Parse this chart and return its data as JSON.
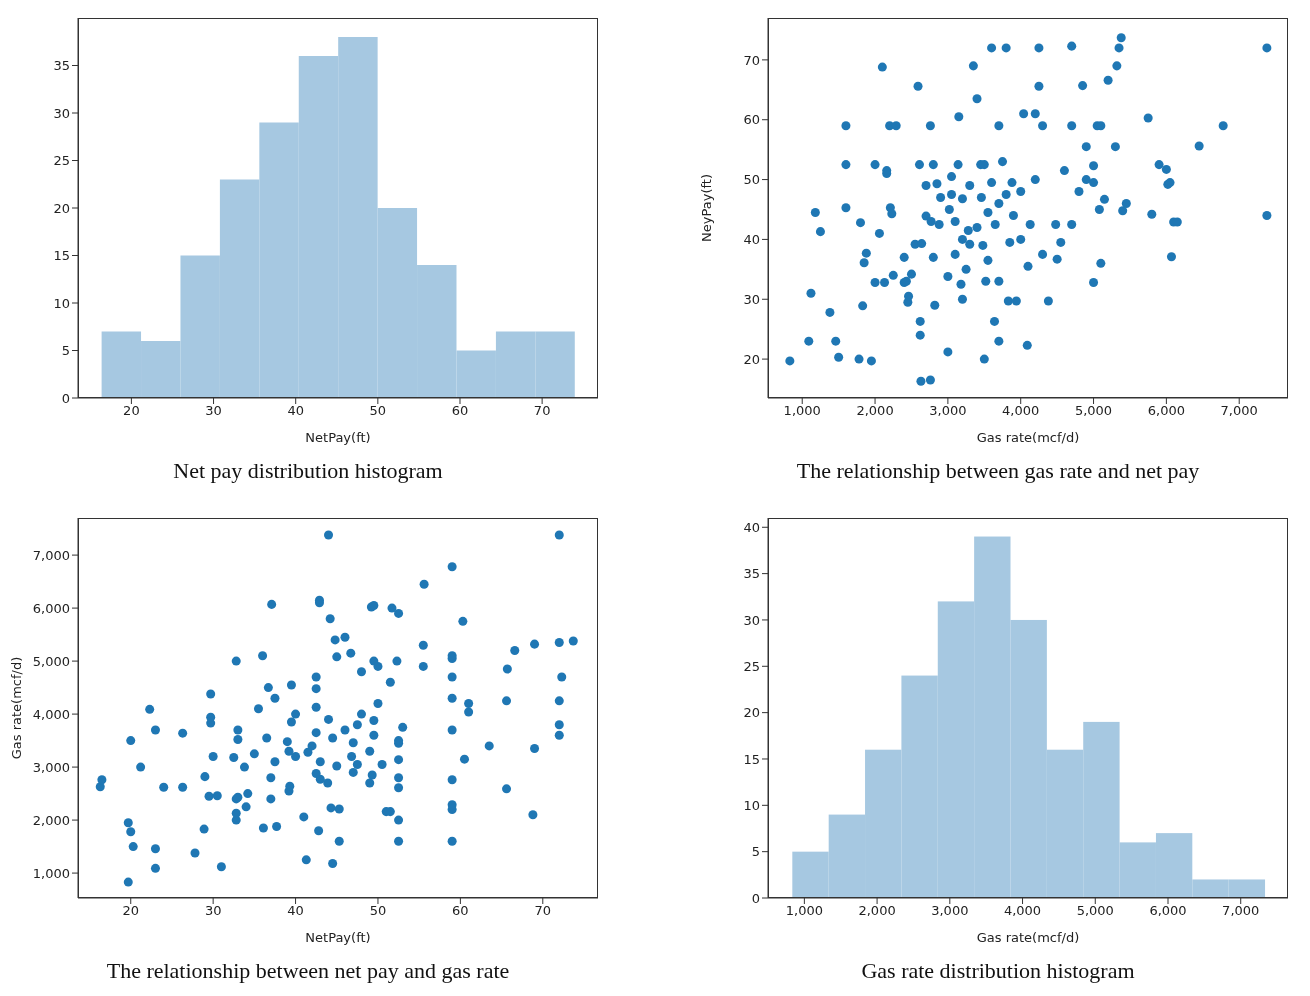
{
  "chart_data": [
    {
      "type": "histogram",
      "title": "Net pay distribution histogram",
      "xlabel": "NetPay(ft)",
      "color": "#a6c8e1",
      "bins": [
        16.4,
        21.2,
        26,
        30.8,
        35.6,
        40.4,
        45.2,
        50,
        54.8,
        59.6,
        64.4,
        69.2,
        74
      ],
      "values": [
        7,
        6,
        15,
        23,
        29,
        36,
        38,
        20,
        14,
        5,
        7,
        7
      ],
      "xlim": [
        13.5,
        76.8
      ],
      "xticks": [
        20,
        30,
        40,
        50,
        60,
        70
      ],
      "ylim": [
        0,
        40
      ],
      "yticks": [
        0,
        5,
        10,
        15,
        20,
        25,
        30,
        35
      ]
    },
    {
      "type": "scatter",
      "title": "The relationship between gas rate and net pay",
      "xlabel": "Gas rate(mcf/d)",
      "ylabel": "NeyPay(ft)",
      "color": "#1f77b4",
      "marker": "circle",
      "x": [
        830,
        1090,
        1120,
        1180,
        1250,
        1380,
        1460,
        1500,
        1600,
        1600,
        1600,
        1780,
        1800,
        1830,
        1850,
        1880,
        1950,
        2000,
        2000,
        2060,
        2100,
        2130,
        2160,
        2160,
        2200,
        2210,
        2230,
        2250,
        2290,
        2400,
        2400,
        2430,
        2450,
        2460,
        2500,
        2550,
        2590,
        2610,
        2620,
        2620,
        2630,
        2640,
        2700,
        2700,
        2760,
        2760,
        2770,
        2800,
        2800,
        2820,
        2850,
        2880,
        2900,
        3000,
        3000,
        3020,
        3050,
        3050,
        3100,
        3100,
        3140,
        3150,
        3180,
        3200,
        3200,
        3200,
        3250,
        3280,
        3300,
        3300,
        3350,
        3400,
        3400,
        3450,
        3460,
        3480,
        3500,
        3500,
        3520,
        3550,
        3550,
        3600,
        3600,
        3640,
        3650,
        3700,
        3700,
        3700,
        3700,
        3750,
        3800,
        3800,
        3830,
        3850,
        3880,
        3900,
        3940,
        4000,
        4000,
        4040,
        4090,
        4100,
        4130,
        4200,
        4200,
        4250,
        4250,
        4300,
        4300,
        4380,
        4480,
        4500,
        4550,
        4600,
        4700,
        4700,
        4700,
        4800,
        4850,
        4900,
        4900,
        5000,
        5000,
        5000,
        5050,
        5080,
        5100,
        5100,
        5150,
        5200,
        5300,
        5320,
        5350,
        5380,
        5400,
        5450,
        5750,
        5800,
        5900,
        6000,
        6020,
        6050,
        6070,
        6100,
        6150,
        6450,
        6780,
        7380,
        7380
      ],
      "values": [
        19.7,
        23,
        31,
        44.5,
        41.3,
        27.8,
        23,
        20.3,
        59,
        52.5,
        45.3,
        20,
        42.8,
        28.9,
        36.1,
        37.7,
        19.7,
        52.5,
        32.8,
        41,
        68.8,
        32.8,
        51.5,
        51,
        59,
        45.3,
        44.3,
        34,
        59,
        37,
        32.8,
        33,
        29.5,
        30.5,
        34.2,
        39.2,
        65.6,
        52.5,
        26.3,
        24,
        16.3,
        39.3,
        49,
        43.9,
        16.5,
        59,
        43,
        52.5,
        37,
        29,
        49.3,
        42.5,
        47,
        33.8,
        21.2,
        45,
        50.5,
        47.5,
        43,
        37.5,
        52.5,
        60.5,
        32.5,
        46.8,
        40,
        30,
        35,
        41.5,
        49,
        39.2,
        69,
        63.5,
        42,
        52.5,
        47,
        39,
        52.5,
        20,
        33,
        36.5,
        44.5,
        72,
        49.5,
        26.3,
        42.5,
        59,
        46,
        33,
        23,
        53,
        72,
        47.5,
        29.7,
        39.5,
        49.5,
        44,
        29.7,
        48,
        40,
        61,
        22.3,
        35.5,
        42.5,
        61,
        50,
        72,
        65.6,
        59,
        37.5,
        29.7,
        42.5,
        36.7,
        39.5,
        51.5,
        72.3,
        59,
        42.5,
        48,
        65.7,
        55.5,
        50,
        52.3,
        49.5,
        32.8,
        59,
        45,
        59,
        36,
        46.7,
        66.6,
        55.5,
        69,
        72,
        73.7,
        44.8,
        46,
        60.3,
        44.2,
        52.5,
        51.7,
        49.2,
        49.5,
        37.1,
        42.9,
        42.9,
        55.6,
        59,
        72,
        44
      ],
      "xlim": [
        530,
        7670
      ],
      "xticks": [
        {
          "value": 1000,
          "label": "1,000"
        },
        {
          "value": 2000,
          "label": "2,000"
        },
        {
          "value": 3000,
          "label": "3,000"
        },
        {
          "value": 4000,
          "label": "4,000"
        },
        {
          "value": 5000,
          "label": "5,000"
        },
        {
          "value": 6000,
          "label": "6,000"
        },
        {
          "value": 7000,
          "label": "7,000"
        }
      ],
      "ylim": [
        13.5,
        77
      ],
      "yticks": [
        20,
        30,
        40,
        50,
        60,
        70
      ]
    },
    {
      "type": "scatter",
      "title": "The relationship between net pay and gas rate",
      "xlabel": "NetPay(ft)",
      "ylabel": "Gas rate(mcf/d)",
      "color": "#1f77b4",
      "marker": "circle",
      "x": [
        19.7,
        23,
        31,
        44.5,
        41.3,
        27.8,
        23,
        20.3,
        59,
        52.5,
        45.3,
        20,
        42.8,
        28.9,
        36.1,
        37.7,
        19.7,
        52.5,
        32.8,
        41,
        68.8,
        32.8,
        51.5,
        51,
        59,
        45.3,
        44.3,
        34,
        59,
        37,
        32.8,
        33,
        29.5,
        30.5,
        34.2,
        39.2,
        65.6,
        52.5,
        26.3,
        24,
        16.3,
        39.3,
        49,
        43.9,
        16.5,
        59,
        43,
        52.5,
        37,
        29,
        49.3,
        42.5,
        47,
        33.8,
        21.2,
        45,
        50.5,
        47.5,
        43,
        37.5,
        52.5,
        60.5,
        32.5,
        46.8,
        40,
        30,
        35,
        41.5,
        49,
        39.2,
        69,
        63.5,
        42,
        52.5,
        47,
        39,
        52.5,
        20,
        33,
        36.5,
        44.5,
        72,
        49.5,
        26.3,
        42.5,
        59,
        46,
        33,
        23,
        53,
        72,
        47.5,
        29.7,
        39.5,
        49.5,
        44,
        29.7,
        48,
        40,
        61,
        22.3,
        35.5,
        42.5,
        61,
        50,
        72,
        65.6,
        59,
        37.5,
        29.7,
        42.5,
        36.7,
        39.5,
        51.5,
        72.3,
        59,
        42.5,
        48,
        65.7,
        55.5,
        50,
        52.3,
        49.5,
        32.8,
        59,
        45,
        59,
        36,
        46.7,
        66.6,
        55.5,
        69,
        72,
        73.7,
        44.8,
        46,
        60.3,
        44.2,
        52.5,
        51.7,
        49.2,
        49.5,
        37.1,
        42.9,
        42.9,
        55.6,
        59,
        72,
        44
      ],
      "values": [
        830,
        1090,
        1120,
        1180,
        1250,
        1380,
        1460,
        1500,
        1600,
        1600,
        1600,
        1780,
        1800,
        1830,
        1850,
        1880,
        1950,
        2000,
        2000,
        2060,
        2100,
        2130,
        2160,
        2160,
        2200,
        2210,
        2230,
        2250,
        2290,
        2400,
        2400,
        2430,
        2450,
        2460,
        2500,
        2550,
        2590,
        2610,
        2620,
        2620,
        2630,
        2640,
        2700,
        2700,
        2760,
        2760,
        2770,
        2800,
        2800,
        2820,
        2850,
        2880,
        2900,
        3000,
        3000,
        3020,
        3050,
        3050,
        3100,
        3100,
        3140,
        3150,
        3180,
        3200,
        3200,
        3200,
        3250,
        3280,
        3300,
        3300,
        3350,
        3400,
        3400,
        3450,
        3460,
        3480,
        3500,
        3500,
        3520,
        3550,
        3550,
        3600,
        3600,
        3640,
        3650,
        3700,
        3700,
        3700,
        3700,
        3750,
        3800,
        3800,
        3830,
        3850,
        3880,
        3900,
        3940,
        4000,
        4000,
        4040,
        4090,
        4100,
        4130,
        4200,
        4200,
        4250,
        4250,
        4300,
        4300,
        4380,
        4480,
        4500,
        4550,
        4600,
        4700,
        4700,
        4700,
        4800,
        4850,
        4900,
        4900,
        5000,
        5000,
        5000,
        5050,
        5080,
        5100,
        5100,
        5150,
        5200,
        5300,
        5320,
        5350,
        5380,
        5400,
        5450,
        5750,
        5800,
        5900,
        6000,
        6020,
        6050,
        6070,
        6100,
        6150,
        6450,
        6780,
        7380,
        7380
      ],
      "xlim": [
        13.6,
        76.7
      ],
      "xticks": [
        20,
        30,
        40,
        50,
        60,
        70
      ],
      "ylim": [
        530,
        7700
      ],
      "yticks": [
        {
          "value": 1000,
          "label": "1,000"
        },
        {
          "value": 2000,
          "label": "2,000"
        },
        {
          "value": 3000,
          "label": "3,000"
        },
        {
          "value": 4000,
          "label": "4,000"
        },
        {
          "value": 5000,
          "label": "5,000"
        },
        {
          "value": 6000,
          "label": "6,000"
        },
        {
          "value": 7000,
          "label": "7,000"
        }
      ]
    },
    {
      "type": "histogram",
      "title": "Gas rate distribution histogram",
      "xlabel": "Gas rate(mcf/d)",
      "color": "#a6c8e1",
      "bins": [
        830,
        1330,
        1830,
        2330,
        2830,
        3330,
        3830,
        4330,
        4830,
        5330,
        5830,
        6330,
        6830,
        7330
      ],
      "values": [
        5,
        9,
        16,
        24,
        32,
        39,
        30,
        16,
        19,
        6,
        7,
        2,
        2
      ],
      "xlim": [
        500,
        7650
      ],
      "xticks": [
        {
          "value": 1000,
          "label": "1,000"
        },
        {
          "value": 2000,
          "label": "2,000"
        },
        {
          "value": 3000,
          "label": "3,000"
        },
        {
          "value": 4000,
          "label": "4,000"
        },
        {
          "value": 5000,
          "label": "5,000"
        },
        {
          "value": 6000,
          "label": "6,000"
        },
        {
          "value": 7000,
          "label": "7,000"
        }
      ],
      "ylim": [
        0,
        41
      ],
      "yticks": [
        0,
        5,
        10,
        15,
        20,
        25,
        30,
        35,
        40
      ]
    }
  ]
}
